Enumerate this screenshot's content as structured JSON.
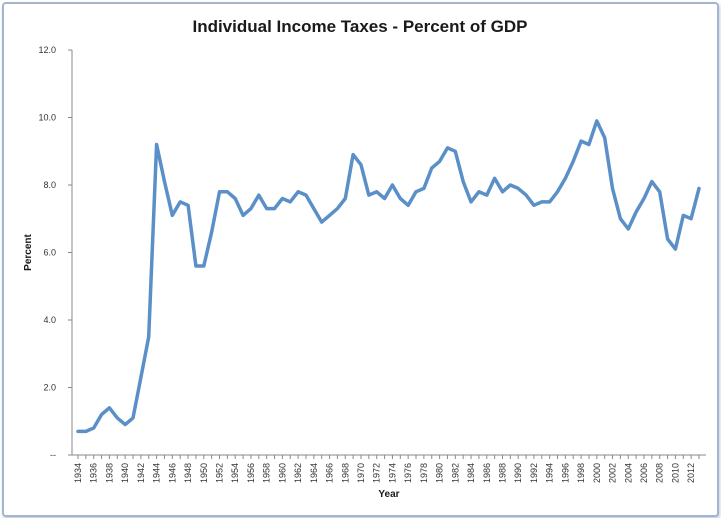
{
  "chart_data": {
    "type": "line",
    "title": "Individual Income Taxes - Percent of GDP",
    "xlabel": "Year",
    "ylabel": "Percent",
    "ylim": [
      0,
      12
    ],
    "y_ticks": [
      "--",
      "2.0",
      "4.0",
      "6.0",
      "8.0",
      "10.0",
      "12.0"
    ],
    "x_tick_labels": [
      "1934",
      "1936",
      "1938",
      "1940",
      "1942",
      "1944",
      "1946",
      "1948",
      "1950",
      "1952",
      "1954",
      "1956",
      "1958",
      "1960",
      "1962",
      "1964",
      "1966",
      "1968",
      "1970",
      "1972",
      "1974",
      "1976",
      "1978",
      "1980",
      "1982",
      "1984",
      "1986",
      "1988",
      "1990",
      "1992",
      "1994",
      "1996",
      "1998",
      "2000",
      "2002",
      "2004",
      "2006",
      "2008",
      "2010",
      "2012"
    ],
    "grid": false,
    "legend": "none",
    "line_color": "#5b8fc7",
    "x": [
      1934,
      1935,
      1936,
      1937,
      1938,
      1939,
      1940,
      1941,
      1942,
      1943,
      1944,
      1945,
      1946,
      1947,
      1948,
      1949,
      1950,
      1951,
      1952,
      1953,
      1954,
      1955,
      1956,
      1957,
      1958,
      1959,
      1960,
      1961,
      1962,
      1963,
      1964,
      1965,
      1966,
      1967,
      1968,
      1969,
      1970,
      1971,
      1972,
      1973,
      1974,
      1975,
      1976,
      1977,
      1978,
      1979,
      1980,
      1981,
      1982,
      1983,
      1984,
      1985,
      1986,
      1987,
      1988,
      1989,
      1990,
      1991,
      1992,
      1993,
      1994,
      1995,
      1996,
      1997,
      1998,
      1999,
      2000,
      2001,
      2002,
      2003,
      2004,
      2005,
      2006,
      2007,
      2008,
      2009,
      2010,
      2011,
      2012,
      2013
    ],
    "values": [
      0.7,
      0.7,
      0.8,
      1.2,
      1.4,
      1.1,
      0.9,
      1.1,
      2.3,
      3.5,
      9.2,
      8.1,
      7.1,
      7.5,
      7.4,
      5.6,
      5.6,
      6.6,
      7.8,
      7.8,
      7.6,
      7.1,
      7.3,
      7.7,
      7.3,
      7.3,
      7.6,
      7.5,
      7.8,
      7.7,
      7.3,
      6.9,
      7.1,
      7.3,
      7.6,
      8.9,
      8.6,
      7.7,
      7.8,
      7.6,
      8.0,
      7.6,
      7.4,
      7.8,
      7.9,
      8.5,
      8.7,
      9.1,
      9.0,
      8.1,
      7.5,
      7.8,
      7.7,
      8.2,
      7.8,
      8.0,
      7.9,
      7.7,
      7.4,
      7.5,
      7.5,
      7.8,
      8.2,
      8.7,
      9.3,
      9.2,
      9.9,
      9.4,
      7.9,
      7.0,
      6.7,
      7.2,
      7.6,
      8.1,
      7.8,
      6.4,
      6.1,
      7.1,
      7.0,
      7.9
    ]
  }
}
